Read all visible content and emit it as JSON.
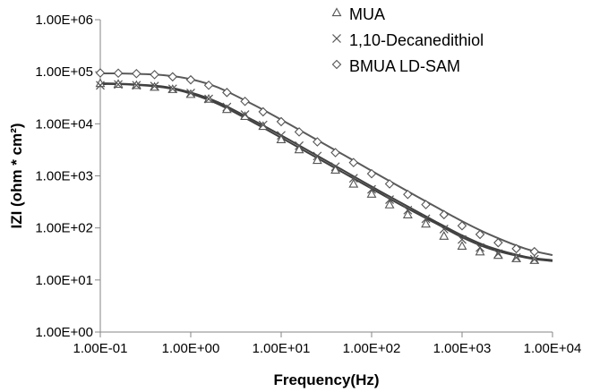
{
  "chart_data": {
    "type": "scatter",
    "xlabel": "Frequency(Hz)",
    "ylabel": "IZI (ohm * cm²)",
    "x_scale": "log",
    "y_scale": "log",
    "xlim": [
      0.1,
      10000
    ],
    "ylim": [
      1,
      1000000
    ],
    "x_ticks": [
      0.1,
      1,
      10,
      100,
      1000,
      10000
    ],
    "x_tick_labels": [
      "1.00E-01",
      "1.00E+00",
      "1.00E+01",
      "1.00E+02",
      "1.00E+03",
      "1.00E+04"
    ],
    "y_ticks": [
      1,
      10,
      100,
      1000,
      10000,
      100000,
      1000000
    ],
    "y_tick_labels": [
      "1.00E+00",
      "1.00E+01",
      "1.00E+02",
      "1.00E+03",
      "1.00E+04",
      "1.00E+05",
      "1.00E+06"
    ],
    "grid": false,
    "legend_position": "top-right",
    "series": [
      {
        "name": "MUA",
        "marker": "triangle",
        "color": "#555555",
        "x": [
          0.1,
          0.158,
          0.251,
          0.398,
          0.631,
          1.0,
          1.58,
          2.51,
          3.98,
          6.31,
          10,
          15.8,
          25.1,
          39.8,
          63.1,
          100,
          158,
          251,
          398,
          631,
          1000,
          1580,
          2510,
          3980,
          6310
        ],
        "y": [
          60000,
          58000,
          55000,
          51000,
          46000,
          37000,
          30000,
          19000,
          14000,
          9000,
          5000,
          3200,
          2000,
          1300,
          700,
          450,
          280,
          180,
          120,
          70,
          45,
          35,
          30,
          26,
          24
        ]
      },
      {
        "name": "1,10-Decanedithiol",
        "marker": "x",
        "color": "#555555",
        "x": [
          0.1,
          0.158,
          0.251,
          0.398,
          0.631,
          1.0,
          1.58,
          2.51,
          3.98,
          6.31,
          10,
          15.8,
          25.1,
          39.8,
          63.1,
          100,
          158,
          251,
          398,
          631,
          1000,
          1580,
          2510,
          3980,
          6310
        ],
        "y": [
          55000,
          57000,
          55000,
          53000,
          47000,
          39000,
          30000,
          21000,
          15000,
          9500,
          6000,
          3800,
          2400,
          1500,
          900,
          550,
          350,
          220,
          150,
          95,
          60,
          42,
          32,
          27,
          25
        ]
      },
      {
        "name": "BMUA LD-SAM",
        "marker": "diamond",
        "color": "#555555",
        "x": [
          0.1,
          0.158,
          0.251,
          0.398,
          0.631,
          1.0,
          1.58,
          2.51,
          3.98,
          6.31,
          10,
          15.8,
          25.1,
          39.8,
          63.1,
          100,
          158,
          251,
          398,
          631,
          1000,
          1580,
          2510,
          3980,
          6310
        ],
        "y": [
          95000,
          94000,
          92000,
          88000,
          80000,
          70000,
          55000,
          40000,
          27000,
          17000,
          11000,
          7000,
          4500,
          2800,
          1800,
          1100,
          700,
          440,
          280,
          180,
          110,
          75,
          52,
          40,
          35
        ]
      }
    ],
    "fit_curves": [
      {
        "series": "MUA",
        "color": "#404040",
        "x": [
          0.1,
          0.2,
          0.5,
          1,
          2,
          5,
          10,
          20,
          50,
          100,
          200,
          500,
          1000,
          2000,
          5000,
          10000
        ],
        "y": [
          58000,
          57000,
          50000,
          38000,
          24000,
          10500,
          5400,
          2750,
          1120,
          570,
          290,
          125,
          66,
          40,
          27,
          23
        ]
      },
      {
        "series": "1,10-Decanedithiol",
        "color": "#404040",
        "x": [
          0.1,
          0.2,
          0.5,
          1,
          2,
          5,
          10,
          20,
          50,
          100,
          200,
          500,
          1000,
          2000,
          5000,
          10000
        ],
        "y": [
          60000,
          58000,
          52000,
          40000,
          26000,
          11500,
          6000,
          3050,
          1240,
          625,
          320,
          135,
          72,
          43,
          28,
          24
        ]
      },
      {
        "series": "BMUA LD-SAM",
        "color": "#5a5a5a",
        "x": [
          0.1,
          0.2,
          0.5,
          1,
          2,
          5,
          10,
          20,
          50,
          100,
          200,
          500,
          1000,
          2000,
          5000,
          10000
        ],
        "y": [
          93000,
          92000,
          86000,
          72000,
          50000,
          23000,
          12000,
          6100,
          2480,
          1250,
          630,
          260,
          135,
          75,
          40,
          30
        ]
      }
    ]
  }
}
